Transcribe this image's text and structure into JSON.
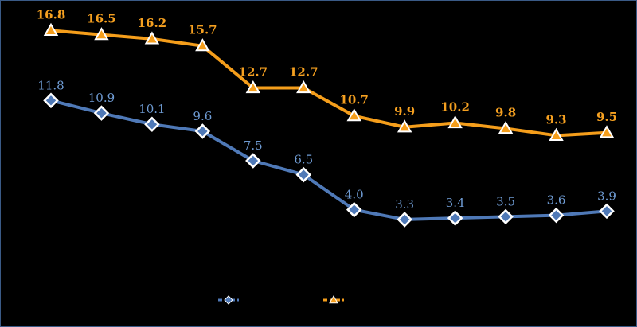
{
  "colors": {
    "background": "#000000",
    "series_blue": "#4f79b7",
    "series_orange": "#f59e1b"
  },
  "chart_data": {
    "type": "line",
    "x": [
      1,
      2,
      3,
      4,
      5,
      6,
      7,
      8,
      9,
      10,
      11,
      12
    ],
    "ylim": [
      0,
      20
    ],
    "grid": false,
    "legend": "bottom",
    "series": [
      {
        "marker": "diamond",
        "color": "#4f79b7",
        "values": [
          11.8,
          10.9,
          10.1,
          9.6,
          7.5,
          6.5,
          4.0,
          3.3,
          3.4,
          3.5,
          3.6,
          3.9
        ],
        "labels": [
          "11.8",
          "10.9",
          "10.1",
          "9.6",
          "7.5",
          "6.5",
          "4.0",
          "3.3",
          "3.4",
          "3.5",
          "3.6",
          "3.9"
        ]
      },
      {
        "marker": "triangle",
        "color": "#f59e1b",
        "values": [
          16.8,
          16.5,
          16.2,
          15.7,
          12.7,
          12.7,
          10.7,
          9.9,
          10.2,
          9.8,
          9.3,
          9.5
        ],
        "labels": [
          "16.8",
          "16.5",
          "16.2",
          "15.7",
          "12.7",
          "12.7",
          "10.7",
          "9.9",
          "10.2",
          "9.8",
          "9.3",
          "9.5"
        ]
      }
    ]
  }
}
